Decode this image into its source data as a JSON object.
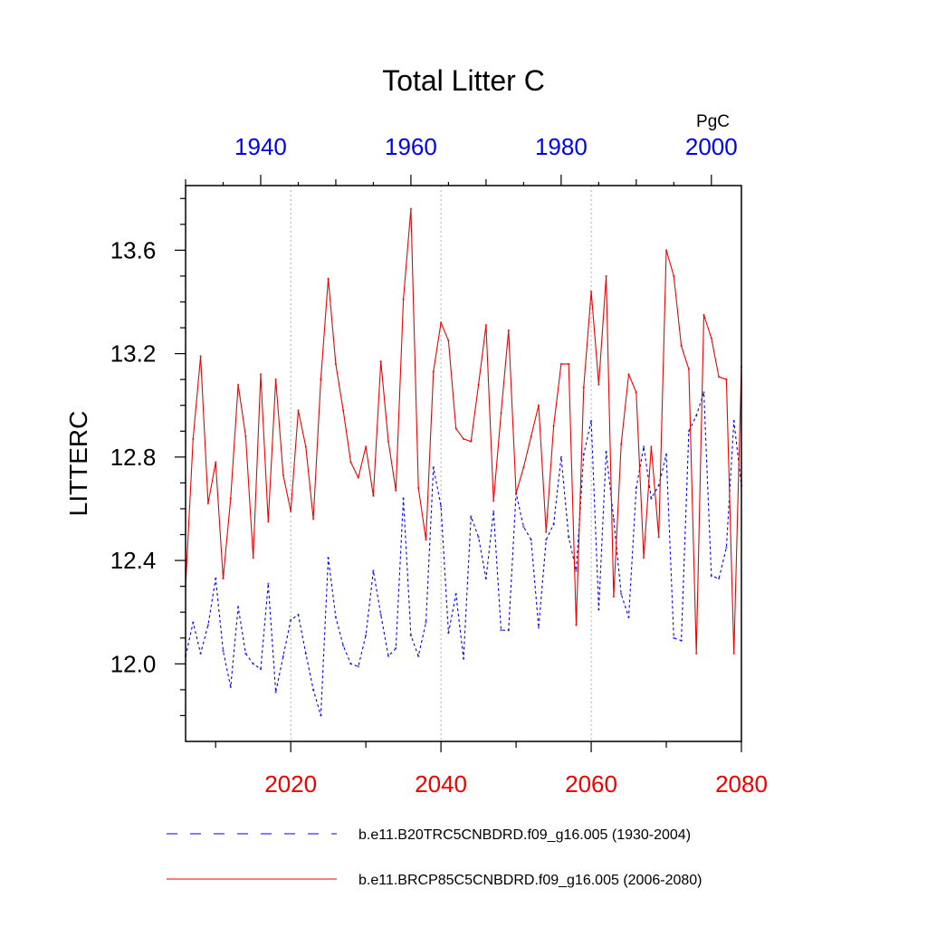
{
  "chart_data": {
    "type": "line",
    "title": "Total Litter C",
    "ylabel": "LITTERC",
    "units": "PgC",
    "ylim": [
      11.7,
      13.85
    ],
    "y_ticks": [
      "12.0",
      "12.4",
      "12.8",
      "13.2",
      "13.6"
    ],
    "x_bottom": {
      "range": [
        2006,
        2080
      ],
      "ticks": [
        "2020",
        "2040",
        "2060",
        "2080"
      ],
      "color": "#ee0000"
    },
    "x_top": {
      "range": [
        1930,
        2004
      ],
      "ticks": [
        "1940",
        "1960",
        "1980",
        "2000"
      ],
      "color": "#0000ee"
    },
    "grid": "dotted vertical at 2020, 2040, 2060",
    "legend_position": "bottom",
    "series": [
      {
        "name": "b.e11.B20TRC5CNBDRD.f09_g16.005 (1930-2004)",
        "color": "#0000ee",
        "dash": "dashed",
        "axis": "top",
        "x_start": 1930,
        "values": [
          12.03,
          12.16,
          12.04,
          12.15,
          12.33,
          12.05,
          11.91,
          12.22,
          12.04,
          12.0,
          11.98,
          12.31,
          11.89,
          12.03,
          12.17,
          12.19,
          12.04,
          11.9,
          11.8,
          12.41,
          12.18,
          12.07,
          12.0,
          11.99,
          12.11,
          12.36,
          12.19,
          12.03,
          12.06,
          12.64,
          12.11,
          12.03,
          12.16,
          12.76,
          12.61,
          12.12,
          12.27,
          12.02,
          12.57,
          12.49,
          12.33,
          12.59,
          12.13,
          12.13,
          12.66,
          12.53,
          12.48,
          12.14,
          12.48,
          12.54,
          12.8,
          12.49,
          12.36,
          12.81,
          12.94,
          12.21,
          12.82,
          12.56,
          12.27,
          12.18,
          12.68,
          12.84,
          12.64,
          12.69,
          12.81,
          12.1,
          12.09,
          12.9,
          12.96,
          13.05,
          12.34,
          12.33,
          12.45,
          12.94,
          12.69
        ]
      },
      {
        "name": "b.e11.BRCP85C5CNBDRD.f09_g16.005 (2006-2080)",
        "color": "#ee0000",
        "dash": "solid",
        "axis": "bottom",
        "x_start": 2006,
        "values": [
          12.3,
          12.87,
          13.19,
          12.62,
          12.78,
          12.33,
          12.64,
          13.08,
          12.88,
          12.41,
          13.12,
          12.55,
          13.1,
          12.73,
          12.59,
          12.98,
          12.84,
          12.56,
          13.1,
          13.49,
          13.16,
          12.98,
          12.78,
          12.72,
          12.84,
          12.65,
          13.17,
          12.86,
          12.67,
          13.41,
          13.76,
          12.68,
          12.48,
          13.13,
          13.32,
          13.25,
          12.91,
          12.87,
          12.86,
          13.08,
          13.31,
          12.63,
          12.97,
          13.29,
          12.66,
          12.76,
          12.88,
          13.0,
          12.51,
          12.92,
          13.16,
          13.16,
          12.15,
          13.07,
          13.44,
          13.08,
          13.5,
          12.26,
          12.85,
          13.12,
          13.05,
          12.41,
          12.84,
          12.49,
          13.6,
          13.5,
          13.23,
          13.14,
          12.04,
          13.35,
          13.26,
          13.11,
          13.1,
          12.04,
          13.15
        ]
      }
    ]
  }
}
